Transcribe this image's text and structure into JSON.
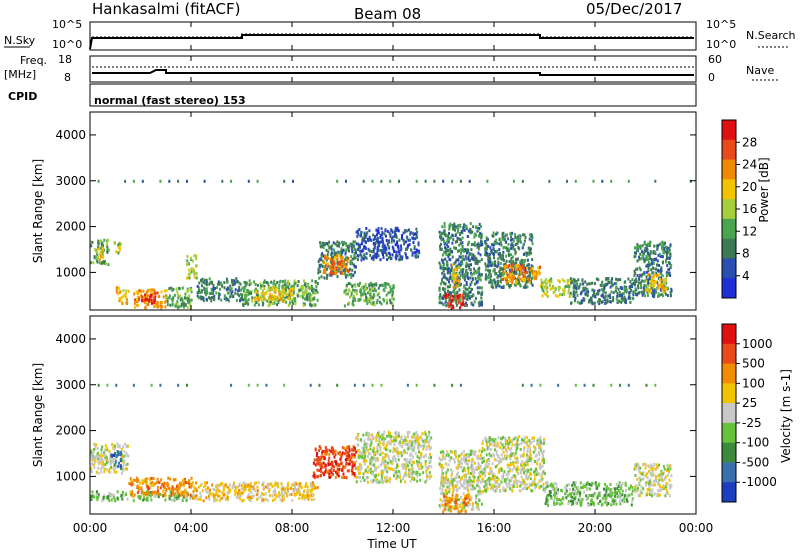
{
  "header": {
    "station": "Hankasalmi (fitACF)",
    "beam": "Beam 08",
    "date": "05/Dec/2017"
  },
  "noise_panel": {
    "left_label": "N.Sky",
    "right_label": "N.Search",
    "left_ticks": [
      "10^5",
      "10^0"
    ],
    "right_ticks": [
      "10^5",
      "10^0"
    ]
  },
  "freq_panel": {
    "left_label_1": "Freq.",
    "left_label_2": "[MHz]",
    "right_label": "Nave",
    "left_ticks": [
      "18",
      "8"
    ],
    "right_ticks": [
      "60",
      "0"
    ]
  },
  "cpid_panel": {
    "label": "CPID",
    "text": "normal (fast stereo) 153"
  },
  "time_ticks": [
    "00:00",
    "04:00",
    "08:00",
    "12:00",
    "16:00",
    "20:00",
    "00:00"
  ],
  "xlabel": "Time UT",
  "colors": {
    "power_scale": [
      "#1f2fd6",
      "#2a4fb0",
      "#3c7a55",
      "#4aa550",
      "#a6cf3c",
      "#f2c300",
      "#f08a00",
      "#e84a1a",
      "#e01010"
    ],
    "velocity_scale": [
      "#1c3fbf",
      "#3a6fae",
      "#3b8a3b",
      "#66c23a",
      "#c8c8c8",
      "#f2c300",
      "#f28c00",
      "#e84a1a",
      "#e01010"
    ]
  },
  "chart_data": [
    {
      "type": "heatmap",
      "name": "power",
      "xlabel": "Time UT",
      "ylabel": "Slant Range [km]",
      "colorbar_label": "Power [dB]",
      "colorbar_ticks": [
        "28",
        "24",
        "20",
        "16",
        "12",
        "8",
        "4"
      ],
      "x_range": [
        0,
        24
      ],
      "y_range": [
        180,
        4500
      ],
      "yticks": [
        "1000",
        "2000",
        "3000",
        "4000"
      ],
      "regions": [
        {
          "x": [
            0.0,
            0.7
          ],
          "y": [
            1200,
            1750
          ],
          "level": 3
        },
        {
          "x": [
            0.2,
            0.5
          ],
          "y": [
            1300,
            1600
          ],
          "level": 5
        },
        {
          "x": [
            0.9,
            1.2
          ],
          "y": [
            1400,
            1700
          ],
          "level": 4
        },
        {
          "x": [
            1.0,
            1.5
          ],
          "y": [
            300,
            700
          ],
          "level": 5
        },
        {
          "x": [
            1.7,
            3.0
          ],
          "y": [
            250,
            650
          ],
          "level": 6
        },
        {
          "x": [
            2.0,
            2.6
          ],
          "y": [
            350,
            550
          ],
          "level": 8
        },
        {
          "x": [
            3.0,
            4.0
          ],
          "y": [
            250,
            700
          ],
          "level": 3
        },
        {
          "x": [
            3.8,
            4.2
          ],
          "y": [
            900,
            1400
          ],
          "level": 4
        },
        {
          "x": [
            4.2,
            6.0
          ],
          "y": [
            400,
            900
          ],
          "level": 2
        },
        {
          "x": [
            6.0,
            9.0
          ],
          "y": [
            300,
            850
          ],
          "level": 3
        },
        {
          "x": [
            6.5,
            8.0
          ],
          "y": [
            400,
            700
          ],
          "level": 5
        },
        {
          "x": [
            9.0,
            10.5
          ],
          "y": [
            900,
            1700
          ],
          "level": 2
        },
        {
          "x": [
            9.2,
            10.2
          ],
          "y": [
            1000,
            1400
          ],
          "level": 6
        },
        {
          "x": [
            9.5,
            10.0
          ],
          "y": [
            1100,
            1300
          ],
          "level": 7
        },
        {
          "x": [
            10.5,
            13.0
          ],
          "y": [
            1300,
            2000
          ],
          "level": 1
        },
        {
          "x": [
            10.0,
            12.0
          ],
          "y": [
            300,
            800
          ],
          "level": 3
        },
        {
          "x": [
            13.8,
            15.5
          ],
          "y": [
            300,
            2100
          ],
          "level": 2
        },
        {
          "x": [
            14.0,
            14.8
          ],
          "y": [
            250,
            550
          ],
          "level": 8
        },
        {
          "x": [
            14.3,
            14.6
          ],
          "y": [
            700,
            1200
          ],
          "level": 5
        },
        {
          "x": [
            15.6,
            17.5
          ],
          "y": [
            700,
            1900
          ],
          "level": 2
        },
        {
          "x": [
            16.3,
            17.8
          ],
          "y": [
            800,
            1200
          ],
          "level": 6
        },
        {
          "x": [
            17.8,
            19.0
          ],
          "y": [
            500,
            900
          ],
          "level": 4
        },
        {
          "x": [
            19.0,
            21.5
          ],
          "y": [
            350,
            900
          ],
          "level": 2
        },
        {
          "x": [
            21.5,
            23.0
          ],
          "y": [
            500,
            1700
          ],
          "level": 2
        },
        {
          "x": [
            22.0,
            22.8
          ],
          "y": [
            600,
            1000
          ],
          "level": 5
        }
      ]
    },
    {
      "type": "heatmap",
      "name": "velocity",
      "xlabel": "Time UT",
      "ylabel": "Slant Range [km]",
      "colorbar_label": "Velocity [m s-1]",
      "colorbar_ticks": [
        "1000",
        "500",
        "100",
        "25",
        "-25",
        "-100",
        "-500",
        "-1000"
      ],
      "x_range": [
        0,
        24
      ],
      "y_range": [
        180,
        4500
      ],
      "yticks": [
        "1000",
        "2000",
        "3000",
        "4000"
      ],
      "regions": [
        {
          "x": [
            0.0,
            1.5
          ],
          "y": [
            1100,
            1750
          ],
          "level": 4
        },
        {
          "x": [
            0.8,
            1.2
          ],
          "y": [
            1200,
            1600
          ],
          "level": 1
        },
        {
          "x": [
            0.0,
            4.0
          ],
          "y": [
            500,
            700
          ],
          "level": 3
        },
        {
          "x": [
            1.5,
            4.0
          ],
          "y": [
            600,
            1000
          ],
          "level": 6
        },
        {
          "x": [
            4.0,
            9.0
          ],
          "y": [
            500,
            900
          ],
          "level": 5
        },
        {
          "x": [
            8.8,
            10.5
          ],
          "y": [
            1000,
            1700
          ],
          "level": 7
        },
        {
          "x": [
            10.5,
            13.5
          ],
          "y": [
            900,
            2000
          ],
          "level": 4
        },
        {
          "x": [
            13.8,
            15.5
          ],
          "y": [
            300,
            1600
          ],
          "level": 4
        },
        {
          "x": [
            13.9,
            15.0
          ],
          "y": [
            250,
            650
          ],
          "level": 6
        },
        {
          "x": [
            15.5,
            18.0
          ],
          "y": [
            700,
            1900
          ],
          "level": 4
        },
        {
          "x": [
            18.0,
            21.5
          ],
          "y": [
            400,
            900
          ],
          "level": 3
        },
        {
          "x": [
            21.5,
            23.0
          ],
          "y": [
            600,
            1300
          ],
          "level": 4
        }
      ]
    }
  ]
}
